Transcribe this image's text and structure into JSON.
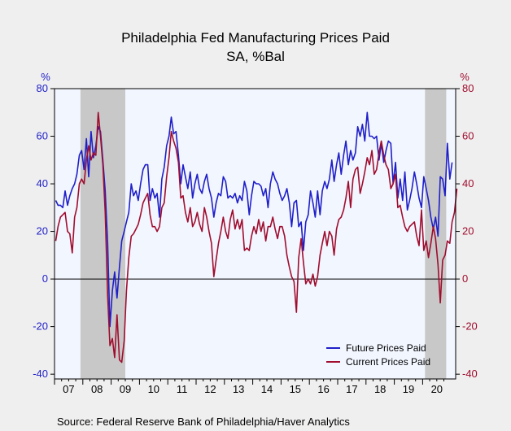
{
  "chart_data": {
    "type": "line",
    "title": "Philadelphia Fed Manufacturing Prices Paid",
    "subtitle": "SA, %Bal",
    "y_unit_left": "%",
    "y_unit_right": "%",
    "ylim": [
      -42,
      80
    ],
    "y_ticks": [
      80,
      60,
      40,
      20,
      0,
      -20,
      -40
    ],
    "x_tick_labels": [
      "07",
      "08",
      "09",
      "10",
      "11",
      "12",
      "13",
      "14",
      "15",
      "16",
      "17",
      "18",
      "19",
      "20"
    ],
    "x_start_year": 2007,
    "recessions": [
      {
        "start": "2007-12",
        "end": "2009-06"
      },
      {
        "start": "2020-02",
        "end": "2020-10"
      }
    ],
    "zero_line": true,
    "legend_position": "bottom-right",
    "source": "Source:  Federal Reserve Bank of Philadelphia/Haver Analytics",
    "series": [
      {
        "name": "Future Prices Paid",
        "color": "#1f1fc8",
        "axis": "left",
        "start": "2007-01",
        "values": [
          33,
          31,
          31,
          30,
          37,
          31,
          35,
          38,
          40,
          44,
          52,
          54,
          46,
          59,
          43,
          62,
          51,
          56,
          64,
          62,
          50,
          37,
          15,
          -20,
          -5,
          3,
          -8,
          5,
          16,
          20,
          24,
          28,
          40,
          35,
          37,
          33,
          40,
          46,
          48,
          48,
          33,
          38,
          34,
          36,
          26,
          42,
          47,
          56,
          60,
          68,
          61,
          62,
          52,
          40,
          48,
          43,
          38,
          45,
          34,
          40,
          44,
          38,
          36,
          41,
          44,
          38,
          34,
          26,
          32,
          36,
          35,
          43,
          41,
          34,
          35,
          34,
          36,
          32,
          35,
          33,
          41,
          37,
          27,
          35,
          41,
          40,
          40,
          39,
          35,
          38,
          30,
          40,
          45,
          42,
          40,
          36,
          33,
          35,
          38,
          32,
          22,
          32,
          33,
          22,
          24,
          12,
          24,
          27,
          37,
          32,
          26,
          37,
          27,
          37,
          41,
          38,
          42,
          50,
          41,
          48,
          53,
          44,
          52,
          58,
          48,
          54,
          50,
          53,
          64,
          60,
          65,
          58,
          70,
          60,
          60,
          59,
          60,
          50,
          57,
          49,
          54,
          58,
          57,
          40,
          49,
          34,
          42,
          33,
          45,
          29,
          33,
          38,
          45,
          40,
          34,
          30,
          43,
          38,
          33,
          26,
          21,
          26,
          18,
          43,
          42,
          35,
          57,
          42,
          49
        ]
      },
      {
        "name": "Current Prices Paid",
        "color": "#a00d2e",
        "axis": "right",
        "start": "2007-01",
        "values": [
          16,
          22,
          26,
          27,
          28,
          20,
          19,
          11,
          26,
          30,
          40,
          42,
          40,
          50,
          56,
          50,
          53,
          52,
          70,
          60,
          48,
          28,
          -7,
          -28,
          -25,
          -33,
          -15,
          -34,
          -35,
          -26,
          -5,
          9,
          18,
          19,
          21,
          23,
          27,
          32,
          34,
          36,
          27,
          22,
          22,
          20,
          22,
          30,
          32,
          43,
          51,
          62,
          58,
          55,
          49,
          34,
          35,
          28,
          24,
          30,
          22,
          24,
          28,
          23,
          20,
          30,
          26,
          20,
          15,
          1,
          8,
          15,
          20,
          26,
          20,
          17,
          25,
          29,
          21,
          25,
          21,
          25,
          12,
          13,
          12,
          18,
          22,
          19,
          25,
          20,
          24,
          16,
          22,
          22,
          26,
          21,
          17,
          22,
          22,
          18,
          10,
          5,
          1,
          -1,
          -14,
          9,
          17,
          7,
          -2,
          0,
          -2,
          2,
          -3,
          1,
          10,
          15,
          20,
          14,
          20,
          18,
          10,
          21,
          25,
          26,
          29,
          34,
          41,
          30,
          42,
          46,
          47,
          36,
          40,
          45,
          51,
          48,
          54,
          44,
          46,
          53,
          58,
          52,
          48,
          46,
          38,
          40,
          44,
          30,
          31,
          26,
          22,
          20,
          22,
          23,
          24,
          18,
          14,
          29,
          12,
          16,
          9,
          15,
          22,
          17,
          6,
          -10,
          8,
          10,
          16,
          15,
          24,
          28,
          38
        ]
      }
    ]
  },
  "legend": [
    {
      "label": "Future Prices Paid",
      "color": "#1f1fc8"
    },
    {
      "label": "Current Prices Paid",
      "color": "#a00d2e"
    }
  ]
}
